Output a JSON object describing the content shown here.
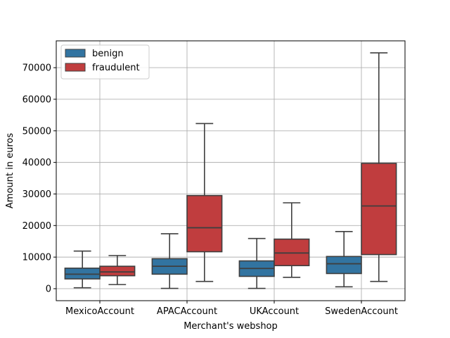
{
  "chart_data": {
    "type": "box",
    "title": "",
    "xlabel": "Merchant's webshop",
    "ylabel": "Amount in euros",
    "ylim": [
      -3800,
      78500
    ],
    "yticks": [
      0,
      10000,
      20000,
      30000,
      40000,
      50000,
      60000,
      70000
    ],
    "ytick_labels": [
      "0",
      "10000",
      "20000",
      "30000",
      "40000",
      "50000",
      "60000",
      "70000"
    ],
    "grid": true,
    "legend_position": "upper-left",
    "categories": [
      "MexicoAccount",
      "APACAccount",
      "UKAccount",
      "SwedenAccount"
    ],
    "series": [
      {
        "name": "benign",
        "color": "#3274a1",
        "boxes": [
          {
            "whisker_low": 300,
            "q1": 3100,
            "median": 4600,
            "q3": 6500,
            "whisker_high": 11900
          },
          {
            "whisker_low": 100,
            "q1": 4600,
            "median": 7100,
            "q3": 9500,
            "whisker_high": 17400
          },
          {
            "whisker_low": 100,
            "q1": 3900,
            "median": 6400,
            "q3": 8800,
            "whisker_high": 15900
          },
          {
            "whisker_low": 600,
            "q1": 4800,
            "median": 7900,
            "q3": 10200,
            "whisker_high": 18100
          }
        ]
      },
      {
        "name": "fraudulent",
        "color": "#c03d3e",
        "boxes": [
          {
            "whisker_low": 1300,
            "q1": 4100,
            "median": 5300,
            "q3": 7100,
            "whisker_high": 10500
          },
          {
            "whisker_low": 2300,
            "q1": 11700,
            "median": 19300,
            "q3": 29500,
            "whisker_high": 52300
          },
          {
            "whisker_low": 3600,
            "q1": 7300,
            "median": 11300,
            "q3": 15700,
            "whisker_high": 27200
          },
          {
            "whisker_low": 2300,
            "q1": 10800,
            "median": 26200,
            "q3": 39700,
            "whisker_high": 74700
          }
        ]
      }
    ]
  }
}
